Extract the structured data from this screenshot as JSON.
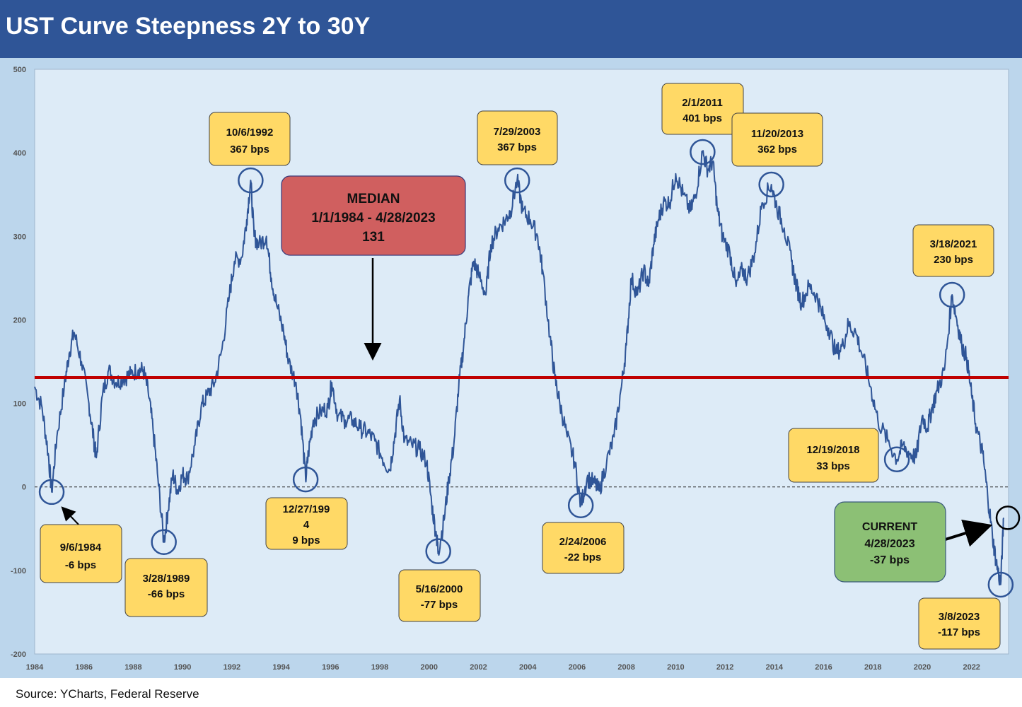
{
  "title": "UST Curve Steepness 2Y to 30Y",
  "source": "Source: YCharts, Federal Reserve",
  "colors": {
    "header": "#2f5597",
    "frame": "#bcd6ec",
    "plot_bg": "#ddebf7",
    "line": "#2f5597",
    "median_line": "#c00000",
    "callout_fill": "#ffd966",
    "median_box_fill": "#d05f5f",
    "current_box_fill": "#8cc075",
    "circle": "#2f5597"
  },
  "chart_data": {
    "type": "line",
    "xlim": [
      1984,
      2023.5
    ],
    "ylim": [
      -200,
      500
    ],
    "x_ticks": [
      "1984",
      "1986",
      "1988",
      "1990",
      "1992",
      "1994",
      "1996",
      "1998",
      "2000",
      "2002",
      "2004",
      "2006",
      "2008",
      "2010",
      "2012",
      "2014",
      "2016",
      "2018",
      "2020",
      "2022"
    ],
    "y_ticks": [
      "500",
      "400",
      "300",
      "200",
      "100",
      "0",
      "-100",
      "-200"
    ],
    "median_value": 131,
    "zero_line": "dashed",
    "grid": false,
    "series": [
      {
        "values_xy": [
          [
            1984.0,
            120
          ],
          [
            1984.3,
            95
          ],
          [
            1984.55,
            40
          ],
          [
            1984.69,
            -6
          ],
          [
            1984.9,
            60
          ],
          [
            1985.2,
            120
          ],
          [
            1985.4,
            160
          ],
          [
            1985.6,
            185
          ],
          [
            1985.9,
            150
          ],
          [
            1986.2,
            100
          ],
          [
            1986.4,
            55
          ],
          [
            1986.5,
            35
          ],
          [
            1986.75,
            110
          ],
          [
            1987.0,
            140
          ],
          [
            1987.3,
            125
          ],
          [
            1987.6,
            130
          ],
          [
            1987.9,
            135
          ],
          [
            1988.2,
            140
          ],
          [
            1988.4,
            140
          ],
          [
            1988.6,
            115
          ],
          [
            1988.8,
            70
          ],
          [
            1989.0,
            10
          ],
          [
            1989.24,
            -66
          ],
          [
            1989.4,
            -30
          ],
          [
            1989.6,
            15
          ],
          [
            1989.8,
            -5
          ],
          [
            1990.0,
            15
          ],
          [
            1990.2,
            10
          ],
          [
            1990.5,
            50
          ],
          [
            1990.75,
            95
          ],
          [
            1991.0,
            110
          ],
          [
            1991.3,
            125
          ],
          [
            1991.6,
            165
          ],
          [
            1991.9,
            230
          ],
          [
            1992.1,
            270
          ],
          [
            1992.4,
            275
          ],
          [
            1992.6,
            320
          ],
          [
            1992.76,
            367
          ],
          [
            1992.9,
            300
          ],
          [
            1993.1,
            290
          ],
          [
            1993.4,
            300
          ],
          [
            1993.6,
            250
          ],
          [
            1993.8,
            220
          ],
          [
            1994.1,
            185
          ],
          [
            1994.3,
            150
          ],
          [
            1994.6,
            125
          ],
          [
            1994.8,
            80
          ],
          [
            1994.99,
            9
          ],
          [
            1995.1,
            40
          ],
          [
            1995.3,
            80
          ],
          [
            1995.6,
            90
          ],
          [
            1995.9,
            95
          ],
          [
            1996.05,
            125
          ],
          [
            1996.3,
            85
          ],
          [
            1996.6,
            80
          ],
          [
            1996.9,
            80
          ],
          [
            1997.2,
            70
          ],
          [
            1997.5,
            65
          ],
          [
            1997.8,
            55
          ],
          [
            1998.1,
            35
          ],
          [
            1998.4,
            20
          ],
          [
            1998.6,
            60
          ],
          [
            1998.8,
            105
          ],
          [
            1999.0,
            55
          ],
          [
            1999.3,
            50
          ],
          [
            1999.6,
            45
          ],
          [
            1999.9,
            30
          ],
          [
            2000.1,
            -20
          ],
          [
            2000.3,
            -60
          ],
          [
            2000.37,
            -77
          ],
          [
            2000.6,
            -40
          ],
          [
            2000.8,
            10
          ],
          [
            2001.0,
            50
          ],
          [
            2001.2,
            120
          ],
          [
            2001.4,
            170
          ],
          [
            2001.6,
            230
          ],
          [
            2001.8,
            270
          ],
          [
            2002.0,
            255
          ],
          [
            2002.3,
            230
          ],
          [
            2002.5,
            290
          ],
          [
            2002.8,
            310
          ],
          [
            2003.1,
            320
          ],
          [
            2003.3,
            330
          ],
          [
            2003.57,
            367
          ],
          [
            2003.8,
            330
          ],
          [
            2004.1,
            320
          ],
          [
            2004.4,
            300
          ],
          [
            2004.6,
            260
          ],
          [
            2004.9,
            180
          ],
          [
            2005.1,
            130
          ],
          [
            2005.3,
            100
          ],
          [
            2005.6,
            60
          ],
          [
            2005.9,
            30
          ],
          [
            2006.15,
            -22
          ],
          [
            2006.4,
            10
          ],
          [
            2006.7,
            5
          ],
          [
            2006.9,
            -5
          ],
          [
            2007.2,
            30
          ],
          [
            2007.5,
            60
          ],
          [
            2007.8,
            120
          ],
          [
            2008.0,
            170
          ],
          [
            2008.2,
            250
          ],
          [
            2008.45,
            230
          ],
          [
            2008.7,
            260
          ],
          [
            2008.9,
            240
          ],
          [
            2009.1,
            290
          ],
          [
            2009.3,
            320
          ],
          [
            2009.5,
            340
          ],
          [
            2009.75,
            340
          ],
          [
            2010.0,
            375
          ],
          [
            2010.3,
            350
          ],
          [
            2010.6,
            330
          ],
          [
            2010.8,
            350
          ],
          [
            2011.09,
            401
          ],
          [
            2011.3,
            380
          ],
          [
            2011.5,
            390
          ],
          [
            2011.7,
            330
          ],
          [
            2011.9,
            300
          ],
          [
            2012.2,
            280
          ],
          [
            2012.45,
            240
          ],
          [
            2012.7,
            260
          ],
          [
            2012.9,
            250
          ],
          [
            2013.2,
            280
          ],
          [
            2013.5,
            340
          ],
          [
            2013.88,
            362
          ],
          [
            2014.1,
            335
          ],
          [
            2014.4,
            310
          ],
          [
            2014.7,
            270
          ],
          [
            2014.9,
            240
          ],
          [
            2015.1,
            220
          ],
          [
            2015.4,
            240
          ],
          [
            2015.7,
            230
          ],
          [
            2015.9,
            210
          ],
          [
            2016.2,
            190
          ],
          [
            2016.5,
            160
          ],
          [
            2016.8,
            170
          ],
          [
            2017.0,
            195
          ],
          [
            2017.3,
            185
          ],
          [
            2017.6,
            155
          ],
          [
            2017.9,
            120
          ],
          [
            2018.2,
            80
          ],
          [
            2018.6,
            55
          ],
          [
            2018.97,
            33
          ],
          [
            2019.2,
            50
          ],
          [
            2019.5,
            40
          ],
          [
            2019.75,
            35
          ],
          [
            2020.0,
            85
          ],
          [
            2020.2,
            70
          ],
          [
            2020.4,
            95
          ],
          [
            2020.6,
            115
          ],
          [
            2020.9,
            140
          ],
          [
            2021.21,
            230
          ],
          [
            2021.4,
            200
          ],
          [
            2021.6,
            170
          ],
          [
            2021.8,
            155
          ],
          [
            2022.0,
            110
          ],
          [
            2022.2,
            70
          ],
          [
            2022.45,
            40
          ],
          [
            2022.65,
            -10
          ],
          [
            2022.85,
            -60
          ],
          [
            2023.0,
            -90
          ],
          [
            2023.18,
            -117
          ],
          [
            2023.3,
            -37
          ]
        ]
      }
    ]
  },
  "median_box": {
    "title": "MEDIAN",
    "range": "1/1/1984 - 4/28/2023",
    "value": "131"
  },
  "current_box": {
    "title": "CURRENT",
    "date": "4/28/2023",
    "value": "-37 bps"
  },
  "callouts": [
    {
      "id": "1984",
      "date": "9/6/1984",
      "value": "-6 bps"
    },
    {
      "id": "1989",
      "date": "3/28/1989",
      "value": "-66 bps"
    },
    {
      "id": "1992",
      "date": "10/6/1992",
      "value": "367 bps"
    },
    {
      "id": "1994",
      "date": "12/27/199",
      "date2": "4",
      "value": "9 bps"
    },
    {
      "id": "2000",
      "date": "5/16/2000",
      "value": "-77 bps"
    },
    {
      "id": "2003",
      "date": "7/29/2003",
      "value": "367 bps"
    },
    {
      "id": "2006",
      "date": "2/24/2006",
      "value": "-22 bps"
    },
    {
      "id": "2011",
      "date": "2/1/2011",
      "value": "401 bps"
    },
    {
      "id": "2013",
      "date": "11/20/2013",
      "value": "362 bps"
    },
    {
      "id": "2018",
      "date": "12/19/2018",
      "value": "33 bps"
    },
    {
      "id": "2021",
      "date": "3/18/2021",
      "value": "230 bps"
    },
    {
      "id": "2023",
      "date": "3/8/2023",
      "value": "-117 bps"
    }
  ]
}
